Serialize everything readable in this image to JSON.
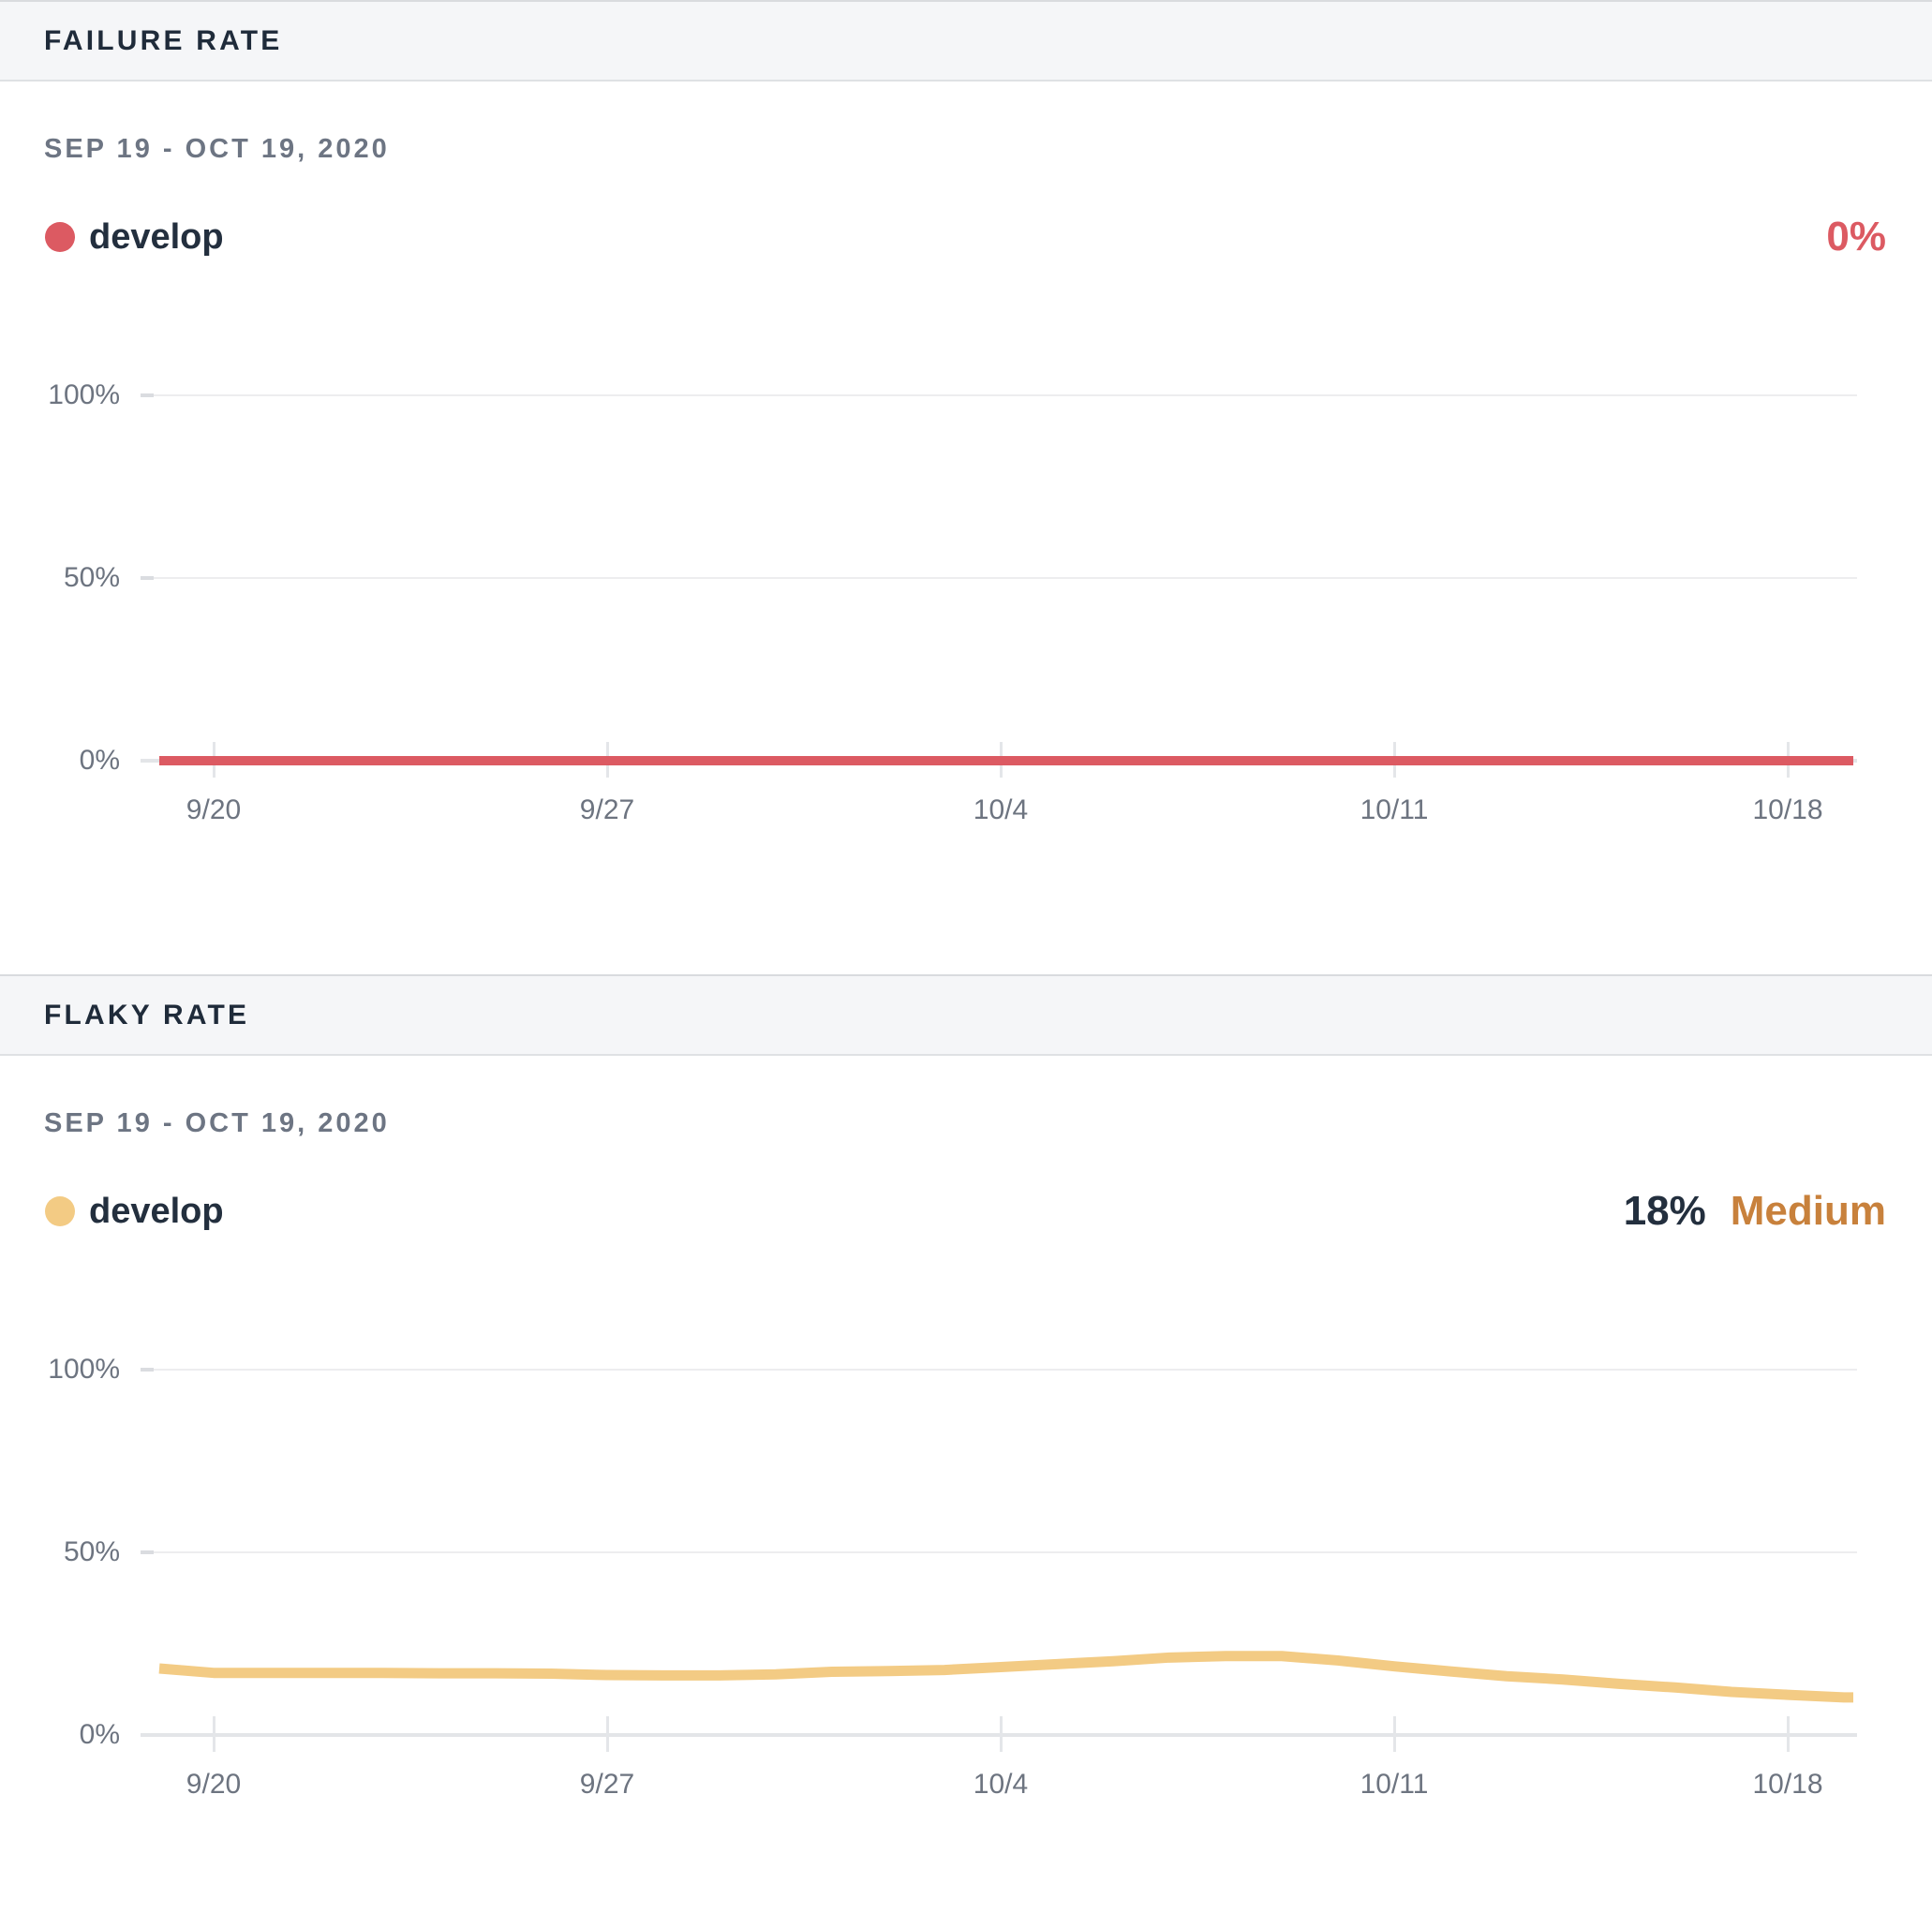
{
  "panels": [
    {
      "header": "FAILURE RATE",
      "date_range": "SEP 19 - OCT 19, 2020",
      "series_label": "develop",
      "series_color": "#dc5a62",
      "value": "0%",
      "value_color": "#dc5a62"
    },
    {
      "header": "FLAKY RATE",
      "date_range": "SEP 19 - OCT 19, 2020",
      "series_label": "develop",
      "series_color": "#f3cb84",
      "value": "18%",
      "value_color": "#232f3e",
      "severity": "Medium",
      "severity_color": "#c8813c"
    }
  ],
  "chart_data": [
    {
      "type": "line",
      "title": "FAILURE RATE",
      "date_range": "SEP 19 - OCT 19, 2020",
      "ylim": [
        0,
        100
      ],
      "grid": true,
      "yticks": [
        {
          "value": 0,
          "label": "0%"
        },
        {
          "value": 50,
          "label": "50%"
        },
        {
          "value": 100,
          "label": "100%"
        }
      ],
      "xticks": [
        {
          "day": 1,
          "label": "9/20"
        },
        {
          "day": 8,
          "label": "9/27"
        },
        {
          "day": 15,
          "label": "10/4"
        },
        {
          "day": 22,
          "label": "10/11"
        },
        {
          "day": 29,
          "label": "10/18"
        }
      ],
      "x_unit": "days since 2020-09-19",
      "series": [
        {
          "name": "develop",
          "color": "#dc5a62",
          "summary_value": "0%",
          "values": [
            0,
            0,
            0,
            0,
            0,
            0,
            0,
            0,
            0,
            0,
            0,
            0,
            0,
            0,
            0,
            0,
            0,
            0,
            0,
            0,
            0,
            0,
            0,
            0,
            0,
            0,
            0,
            0,
            0,
            0,
            0
          ]
        }
      ]
    },
    {
      "type": "line",
      "title": "FLAKY RATE",
      "date_range": "SEP 19 - OCT 19, 2020",
      "ylim": [
        0,
        100
      ],
      "grid": true,
      "yticks": [
        {
          "value": 0,
          "label": "0%"
        },
        {
          "value": 50,
          "label": "50%"
        },
        {
          "value": 100,
          "label": "100%"
        }
      ],
      "xticks": [
        {
          "day": 1,
          "label": "9/20"
        },
        {
          "day": 8,
          "label": "9/27"
        },
        {
          "day": 15,
          "label": "10/4"
        },
        {
          "day": 22,
          "label": "10/11"
        },
        {
          "day": 29,
          "label": "10/18"
        }
      ],
      "x_unit": "days since 2020-09-19",
      "series": [
        {
          "name": "develop",
          "color": "#f3cb84",
          "summary_value": "18%",
          "severity": "Medium",
          "values": [
            18.2,
            17,
            17,
            17,
            17,
            16.9,
            16.9,
            16.8,
            16.4,
            16.3,
            16.3,
            16.6,
            17.3,
            17.5,
            17.8,
            18.6,
            19.4,
            20.2,
            21.2,
            21.6,
            21.6,
            20.4,
            18.8,
            17.4,
            16.1,
            15.2,
            14,
            13,
            11.8,
            11,
            10.3
          ]
        }
      ]
    }
  ]
}
